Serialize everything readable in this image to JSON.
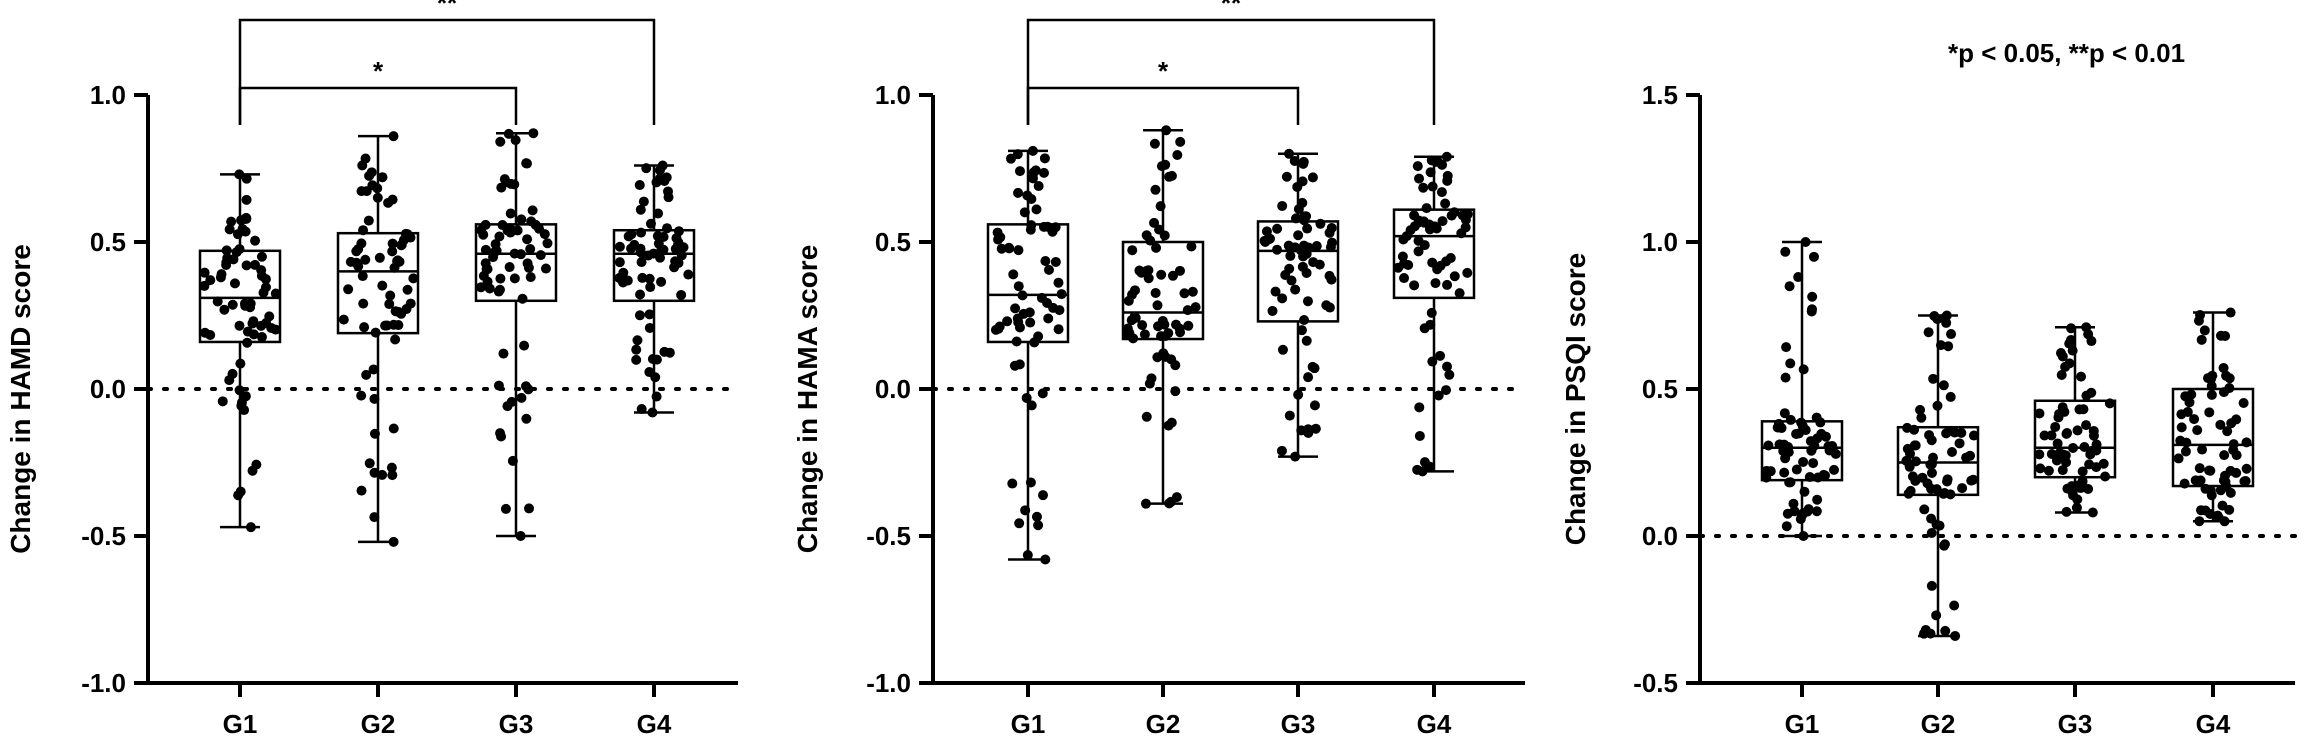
{
  "note": "*p < 0.05,  **p < 0.01",
  "chart_data": [
    {
      "type": "box",
      "ylabel": "Change in HAMD score",
      "ylim": [
        -1.0,
        1.0
      ],
      "yticks": [
        "-1.0",
        "-0.5",
        "0.0",
        "0.5",
        "1.0"
      ],
      "reference_line": 0.0,
      "categories": [
        "G1",
        "G2",
        "G3",
        "G4"
      ],
      "boxes": [
        {
          "group": "G1",
          "min": -0.47,
          "q1": 0.16,
          "median": 0.31,
          "q3": 0.47,
          "max": 0.73
        },
        {
          "group": "G2",
          "min": -0.52,
          "q1": 0.19,
          "median": 0.4,
          "q3": 0.53,
          "max": 0.86
        },
        {
          "group": "G3",
          "min": -0.5,
          "q1": 0.3,
          "median": 0.46,
          "q3": 0.56,
          "max": 0.87
        },
        {
          "group": "G4",
          "min": -0.08,
          "q1": 0.3,
          "median": 0.46,
          "q3": 0.54,
          "max": 0.76
        }
      ],
      "significance": [
        {
          "from": "G1",
          "to": "G3",
          "label": "*"
        },
        {
          "from": "G1",
          "to": "G4",
          "label": "**"
        }
      ]
    },
    {
      "type": "box",
      "ylabel": "Change in HAMA score",
      "ylim": [
        -1.0,
        1.0
      ],
      "yticks": [
        "-1.0",
        "-0.5",
        "0.0",
        "0.5",
        "1.0"
      ],
      "reference_line": 0.0,
      "categories": [
        "G1",
        "G2",
        "G3",
        "G4"
      ],
      "boxes": [
        {
          "group": "G1",
          "min": -0.58,
          "q1": 0.16,
          "median": 0.32,
          "q3": 0.56,
          "max": 0.81
        },
        {
          "group": "G2",
          "min": -0.39,
          "q1": 0.17,
          "median": 0.26,
          "q3": 0.5,
          "max": 0.88
        },
        {
          "group": "G3",
          "min": -0.23,
          "q1": 0.23,
          "median": 0.47,
          "q3": 0.57,
          "max": 0.8
        },
        {
          "group": "G4",
          "min": -0.28,
          "q1": 0.31,
          "median": 0.52,
          "q3": 0.61,
          "max": 0.79
        }
      ],
      "significance": [
        {
          "from": "G1",
          "to": "G3",
          "label": "*"
        },
        {
          "from": "G1",
          "to": "G4",
          "label": "**"
        }
      ]
    },
    {
      "type": "box",
      "ylabel": "Change in PSQI score",
      "ylim": [
        -0.5,
        1.5
      ],
      "yticks": [
        "-0.5",
        "0.0",
        "0.5",
        "1.0",
        "1.5"
      ],
      "reference_line": 0.0,
      "categories": [
        "G1",
        "G2",
        "G3",
        "G4"
      ],
      "boxes": [
        {
          "group": "G1",
          "min": 0.0,
          "q1": 0.19,
          "median": 0.3,
          "q3": 0.39,
          "max": 1.0
        },
        {
          "group": "G2",
          "min": -0.34,
          "q1": 0.14,
          "median": 0.25,
          "q3": 0.37,
          "max": 0.75
        },
        {
          "group": "G3",
          "min": 0.08,
          "q1": 0.2,
          "median": 0.3,
          "q3": 0.46,
          "max": 0.71
        },
        {
          "group": "G4",
          "min": 0.05,
          "q1": 0.17,
          "median": 0.31,
          "q3": 0.5,
          "max": 0.76
        }
      ],
      "significance": []
    }
  ]
}
